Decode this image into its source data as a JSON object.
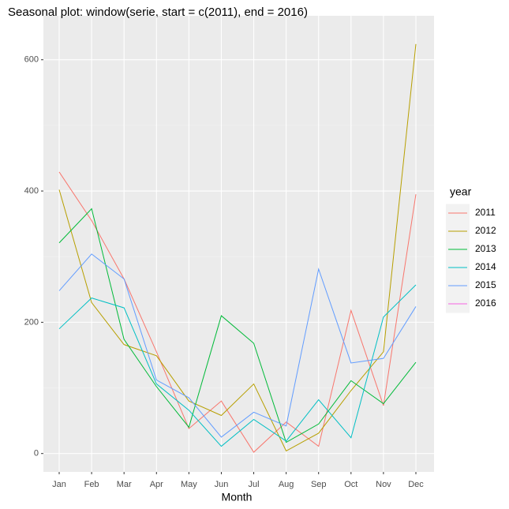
{
  "chart_data": {
    "type": "line",
    "title": "Seasonal plot: window(serie, start = c(2011), end = 2016)",
    "x_label": "Month",
    "legend_title": "year",
    "legend_position": "right",
    "grid": true,
    "categories": [
      "Jan",
      "Feb",
      "Mar",
      "Apr",
      "May",
      "Jun",
      "Jul",
      "Aug",
      "Sep",
      "Oct",
      "Nov",
      "Dec"
    ],
    "ylim": [
      -28,
      667
    ],
    "yticks": [
      0,
      200,
      400,
      600
    ],
    "series": [
      {
        "name": "2011",
        "color": "#F8766D",
        "values": [
          429,
          355,
          266,
          155,
          38,
          80,
          2,
          48,
          11,
          218,
          73,
          395
        ]
      },
      {
        "name": "2012",
        "color": "#B79F00",
        "values": [
          402,
          230,
          166,
          149,
          80,
          58,
          106,
          4,
          31,
          96,
          155,
          624
        ]
      },
      {
        "name": "2013",
        "color": "#00BA38",
        "values": [
          321,
          373,
          174,
          102,
          40,
          210,
          168,
          17,
          45,
          111,
          76,
          139
        ]
      },
      {
        "name": "2014",
        "color": "#00BFC4",
        "values": [
          190,
          237,
          222,
          106,
          66,
          11,
          52,
          19,
          82,
          24,
          208,
          257
        ]
      },
      {
        "name": "2015",
        "color": "#619CFF",
        "values": [
          248,
          304,
          266,
          112,
          85,
          25,
          63,
          42,
          281,
          138,
          145,
          224
        ]
      },
      {
        "name": "2016",
        "color": "#F564E3",
        "values": [
          null,
          null,
          null,
          null,
          null,
          null,
          null,
          null,
          null,
          null,
          null,
          null
        ]
      }
    ]
  }
}
